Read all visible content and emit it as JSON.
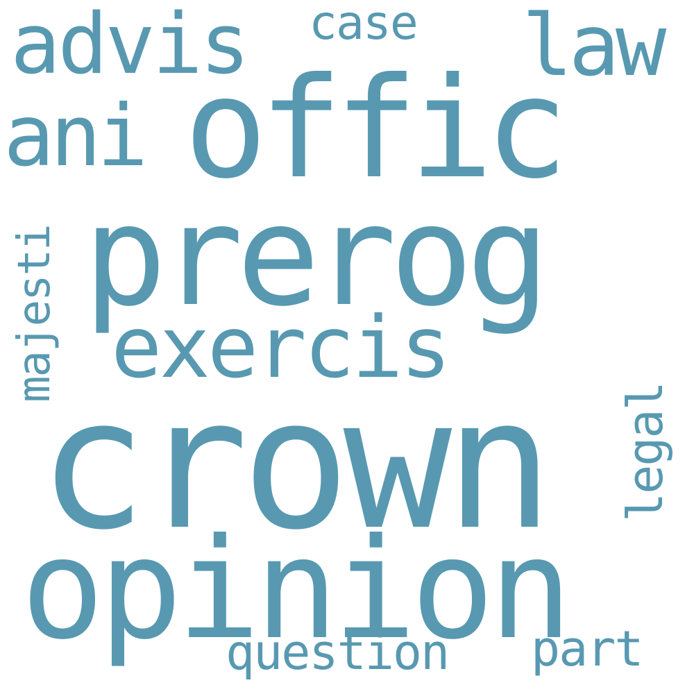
{
  "cloud": {
    "color": "#5899b1",
    "background": "#ffffff",
    "words": {
      "crown": "crown",
      "prerog": "prerog",
      "offic": "offic",
      "opinion": "opinion",
      "exercis": "exercis",
      "advis": "advis",
      "ani": "ani",
      "law": "law",
      "case": "case",
      "question": "question",
      "part": "part",
      "majesti": "majesti",
      "legal": "legal"
    }
  }
}
